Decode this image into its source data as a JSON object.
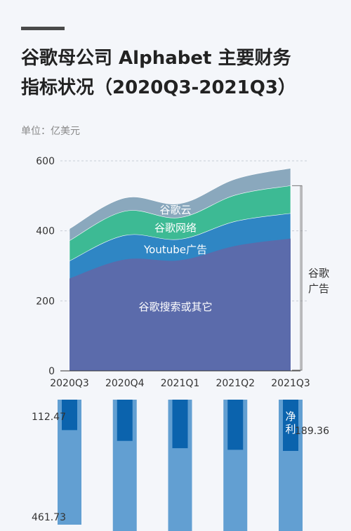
{
  "header": {
    "title_line1": "谷歌母公司 Alphabet 主要财务",
    "title_line2": "指标状况（2020Q3-2021Q3）",
    "unit": "单位：亿美元"
  },
  "colors": {
    "search": "#5b6bab",
    "youtube": "#2f86c4",
    "network": "#3dba94",
    "cloud": "#8aa8bd",
    "revenue_bar": "#629fd2",
    "profit_bar": "#0b63ad"
  },
  "chart_data": [
    {
      "type": "area",
      "stacked": true,
      "categories": [
        "2020Q3",
        "2020Q4",
        "2021Q1",
        "2021Q2",
        "2021Q3"
      ],
      "ylim": [
        0,
        600
      ],
      "yticks": [
        0,
        200,
        400,
        600
      ],
      "series": [
        {
          "name": "谷歌搜索或其它",
          "values": [
            264,
            318,
            316,
            357,
            378
          ]
        },
        {
          "name": "Youtube广告",
          "values": [
            50,
            69,
            60,
            70,
            72
          ]
        },
        {
          "name": "谷歌网络",
          "values": [
            58,
            69,
            62,
            75,
            79
          ]
        },
        {
          "name": "谷歌云",
          "values": [
            34,
            38,
            40,
            46,
            50
          ]
        }
      ],
      "bracket_label": "谷歌广告",
      "grid": "horizontal-dashed"
    },
    {
      "type": "bar",
      "categories": [
        "2020Q3",
        "2020Q4",
        "2021Q1",
        "2021Q2",
        "2021Q3"
      ],
      "series": [
        {
          "name": "",
          "values": [
            461.73,
            565,
            553,
            619,
            651
          ]
        },
        {
          "name": "净利",
          "values": [
            112.47,
            152.27,
            179.3,
            185.25,
            189.36
          ]
        }
      ],
      "labels": {
        "revenue_first": "461.73",
        "profit_first": "112.47",
        "profit_last": "189.36",
        "profit_name": "净利"
      }
    }
  ]
}
